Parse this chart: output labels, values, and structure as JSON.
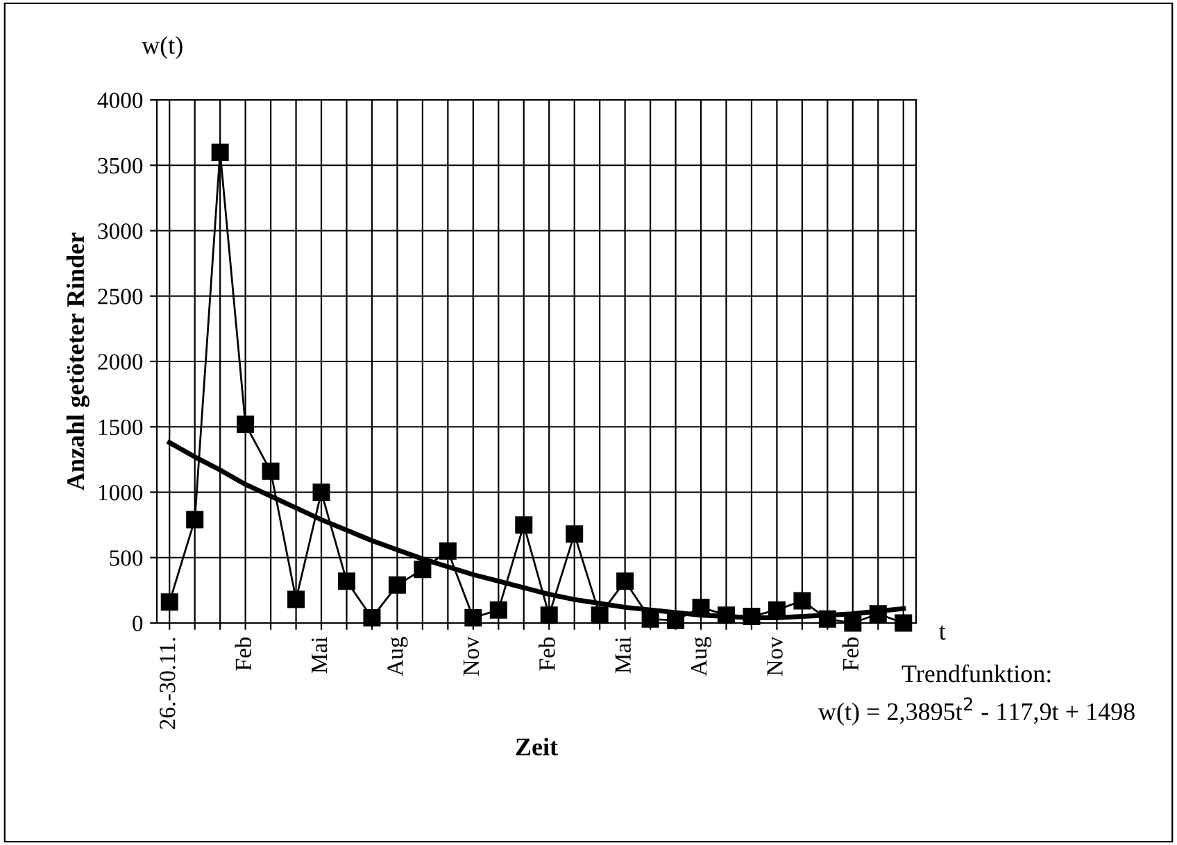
{
  "chart_data": {
    "type": "line",
    "ylabel": "Anzahl getöteter Rinder",
    "xlabel": "Zeit",
    "categories": [
      "26.-30.11.",
      null,
      null,
      "Feb",
      null,
      null,
      "Mai",
      null,
      null,
      "Aug",
      null,
      null,
      "Nov",
      null,
      null,
      "Feb",
      null,
      null,
      "Mai",
      null,
      null,
      "Aug",
      null,
      null,
      "Nov",
      null,
      null,
      "Feb",
      null,
      null
    ],
    "series": [
      {
        "color": "#000000",
        "marker": "square",
        "line_style": "solid",
        "values": [
          160,
          790,
          3600,
          1520,
          1160,
          180,
          1000,
          320,
          40,
          290,
          410,
          550,
          40,
          100,
          750,
          60,
          680,
          60,
          320,
          30,
          20,
          120,
          60,
          50,
          100,
          170,
          30,
          0,
          70,
          0
        ]
      },
      {
        "color": "#000000",
        "marker": "none",
        "line_style": "solid",
        "values": [
          1380,
          1270,
          1170,
          1060,
          970,
          880,
          790,
          710,
          630,
          560,
          490,
          430,
          370,
          320,
          270,
          220,
          180,
          150,
          120,
          100,
          80,
          60,
          50,
          40,
          40,
          50,
          60,
          70,
          90,
          110
        ]
      }
    ],
    "ylim": [
      0,
      4000
    ],
    "yticks": [
      0,
      500,
      1000,
      1500,
      2000,
      2500,
      3000,
      3500,
      4000
    ],
    "grid": true,
    "legend": false,
    "annotations": [
      "w(t)",
      "t",
      "Trendfunktion:",
      "w(t) = 2,3895t$^{2}$ - 117,9t + 1498"
    ]
  }
}
